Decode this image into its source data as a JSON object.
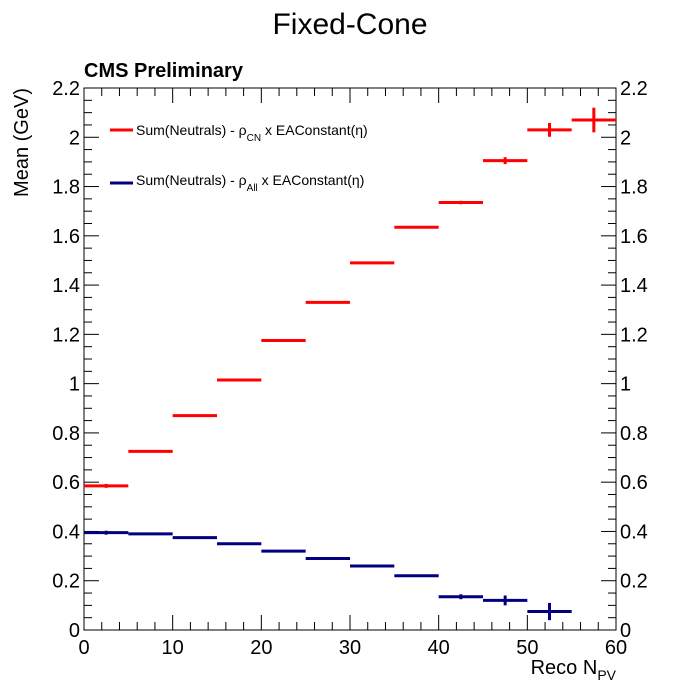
{
  "chart_data": {
    "type": "scatter",
    "title": "Fixed-Cone",
    "annotation": "CMS Preliminary",
    "xlabel": "Reco N",
    "xlabel_sub": "PV",
    "ylabel": "Mean (GeV)",
    "xlim": [
      0,
      60
    ],
    "ylim": [
      0,
      2.2
    ],
    "x_ticks": [
      0,
      10,
      20,
      30,
      40,
      50,
      60
    ],
    "y_ticks": [
      0,
      0.2,
      0.4,
      0.6,
      0.8,
      1,
      1.2,
      1.4,
      1.6,
      1.8,
      2,
      2.2
    ],
    "x_tick_labels": [
      "0",
      "10",
      "20",
      "30",
      "40",
      "50",
      "60"
    ],
    "y_tick_labels": [
      "0",
      "0.2",
      "0.4",
      "0.6",
      "0.8",
      "1",
      "1.2",
      "1.4",
      "1.6",
      "1.8",
      "2",
      "2.2"
    ],
    "legend_position": "top-left",
    "series": [
      {
        "name": "Sum(Neutrals) - ρCN x EAConstant(η)",
        "legend_main": "Sum(Neutrals) - ρ",
        "legend_sub": "CN",
        "legend_tail": " x EAConstant(η)",
        "color": "#ff0000",
        "x": [
          2.5,
          7.5,
          12.5,
          17.5,
          22.5,
          27.5,
          32.5,
          37.5,
          42.5,
          47.5,
          52.5,
          57.5
        ],
        "x_err": [
          2.5,
          2.5,
          2.5,
          2.5,
          2.5,
          2.5,
          2.5,
          2.5,
          2.5,
          2.5,
          2.5,
          2.5
        ],
        "values": [
          0.585,
          0.725,
          0.87,
          1.015,
          1.175,
          1.33,
          1.49,
          1.635,
          1.735,
          1.905,
          2.03,
          2.07
        ],
        "y_err": [
          0.008,
          0.004,
          0.003,
          0.003,
          0.003,
          0.003,
          0.003,
          0.004,
          0.007,
          0.014,
          0.028,
          0.05
        ]
      },
      {
        "name": "Sum(Neutrals) - ρAll x EAConstant(η)",
        "legend_main": "Sum(Neutrals) - ρ",
        "legend_sub": "All",
        "legend_tail": " x EAConstant(η)",
        "color": "#000080",
        "x": [
          2.5,
          7.5,
          12.5,
          17.5,
          22.5,
          27.5,
          32.5,
          37.5,
          42.5,
          47.5,
          52.5
        ],
        "x_err": [
          2.5,
          2.5,
          2.5,
          2.5,
          2.5,
          2.5,
          2.5,
          2.5,
          2.5,
          2.5,
          2.5
        ],
        "values": [
          0.395,
          0.39,
          0.375,
          0.35,
          0.32,
          0.29,
          0.26,
          0.22,
          0.135,
          0.12,
          0.075
        ],
        "y_err": [
          0.008,
          0.004,
          0.003,
          0.003,
          0.003,
          0.003,
          0.003,
          0.004,
          0.01,
          0.02,
          0.035
        ]
      }
    ]
  }
}
